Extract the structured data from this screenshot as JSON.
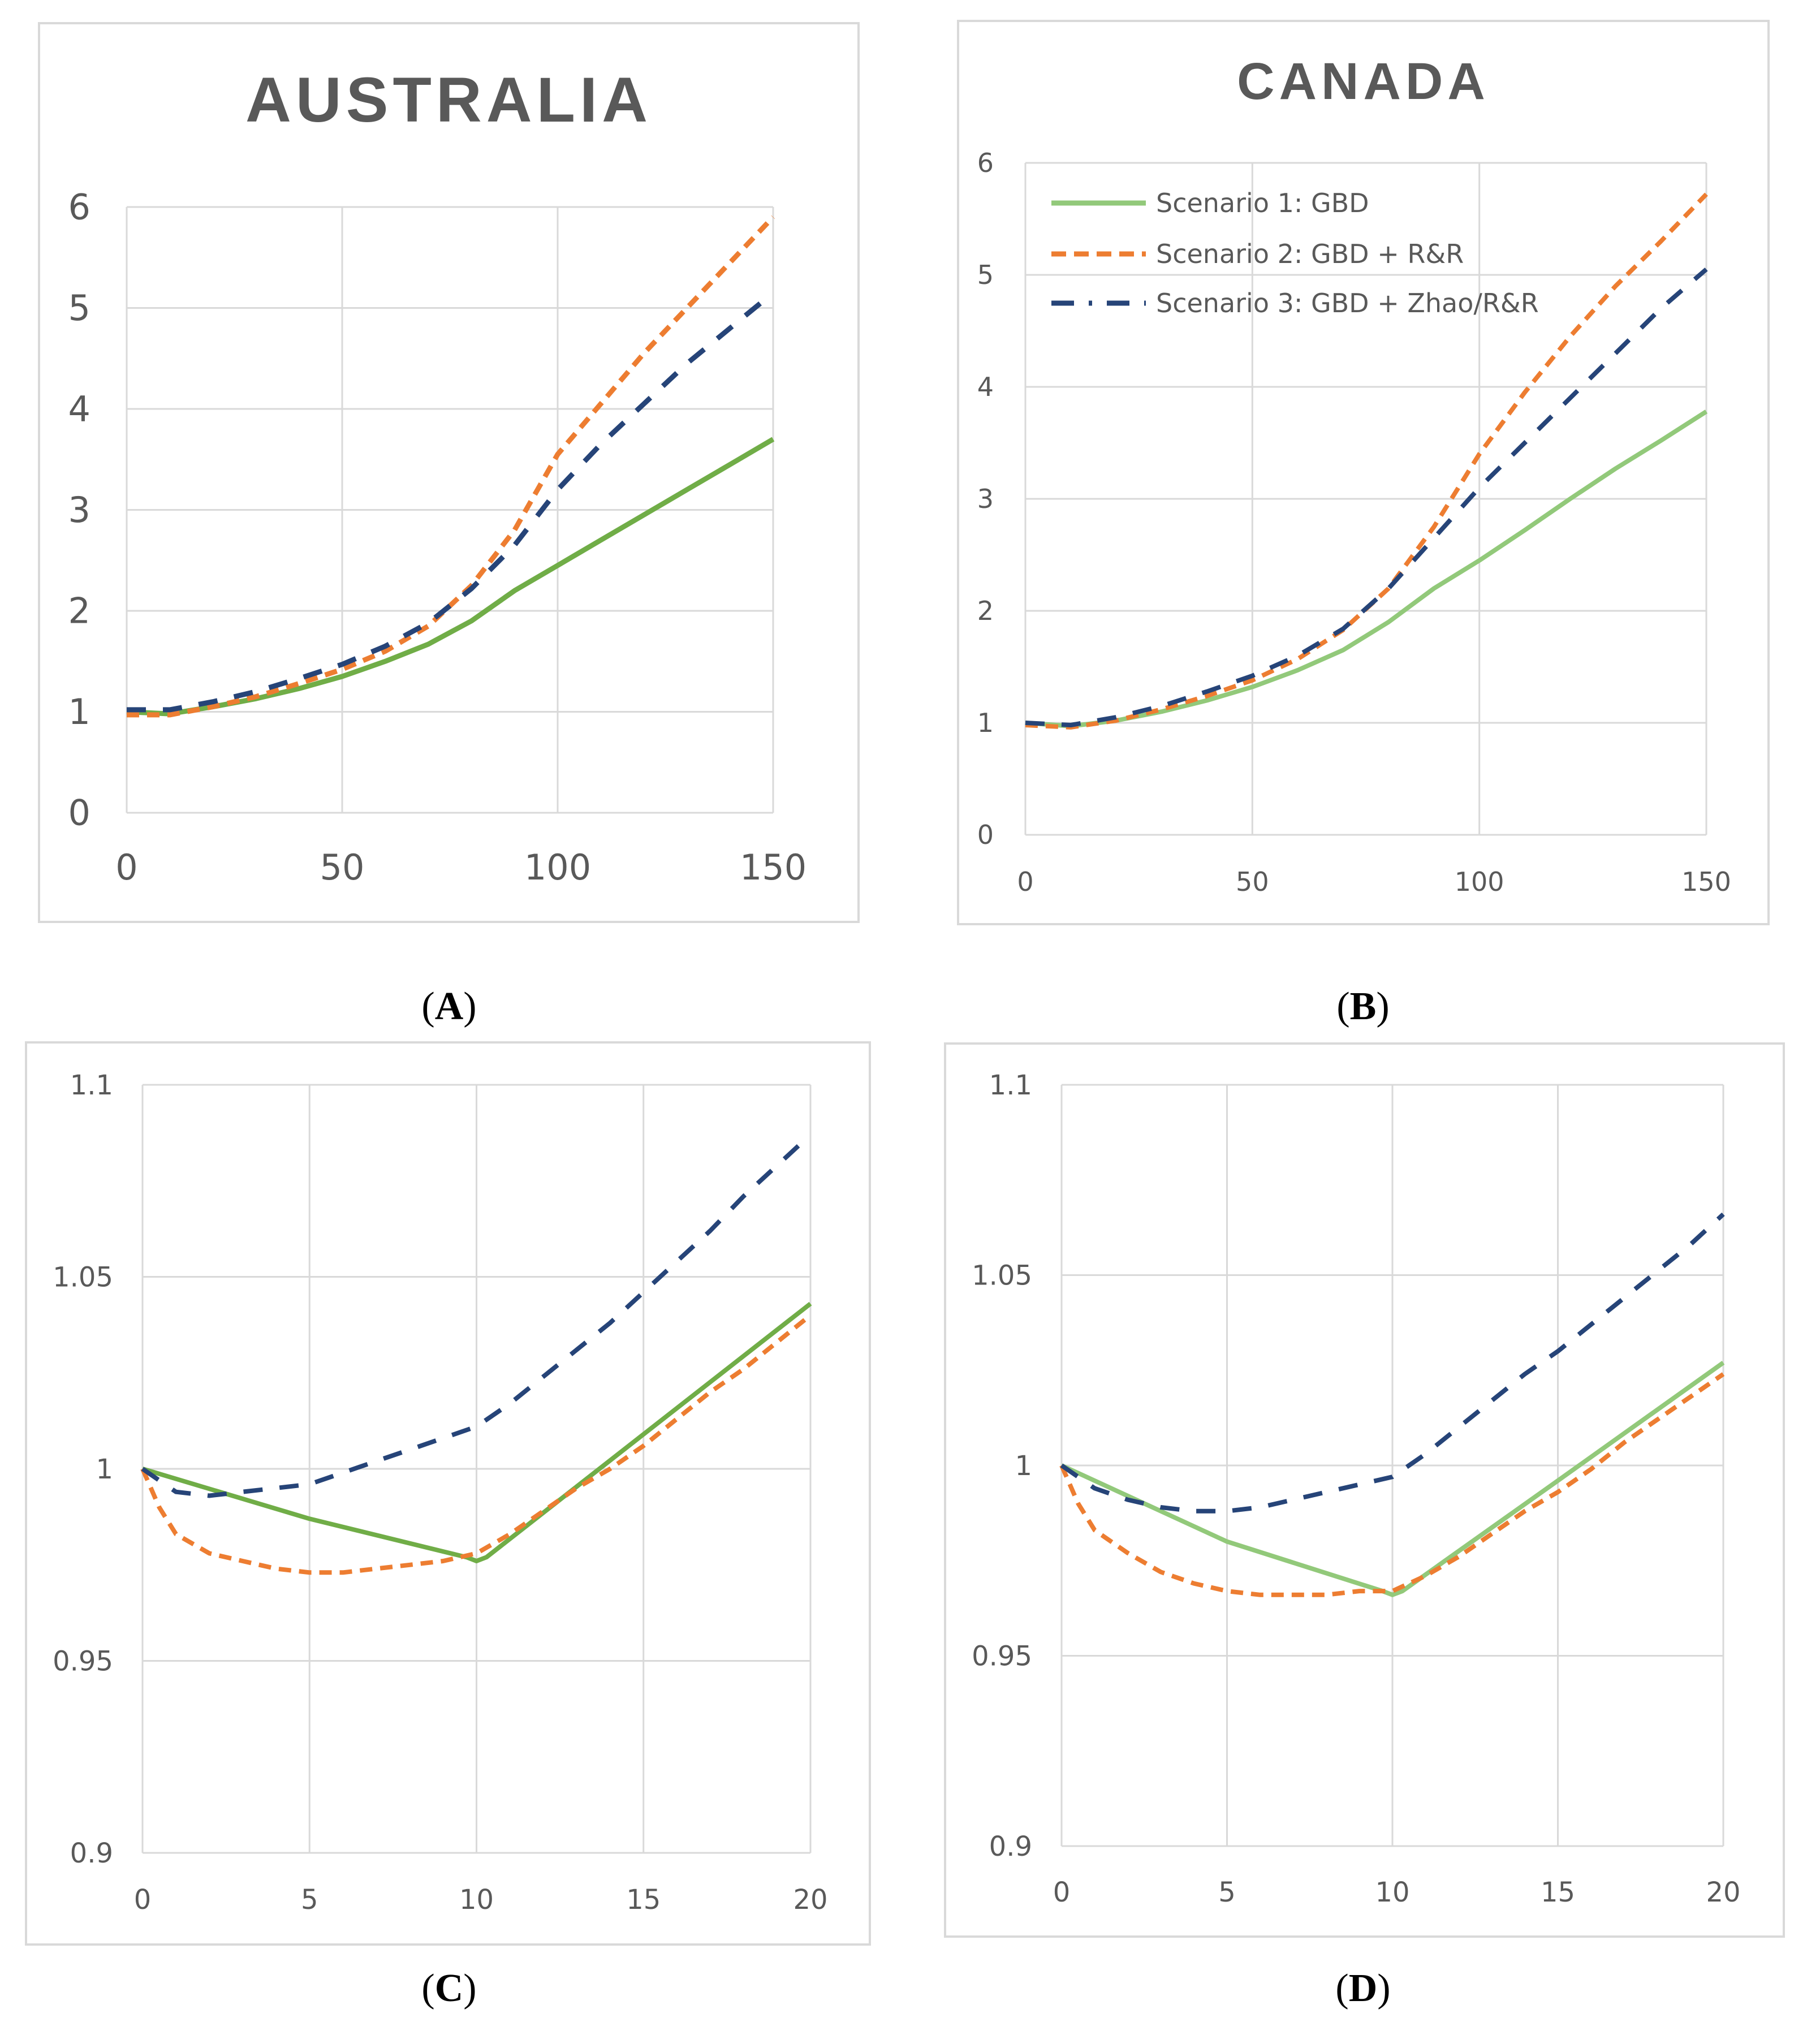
{
  "legend": [
    "Scenario 1: GBD",
    "Scenario 2: GBD + R&R",
    "Scenario 3: GBD + Zhao/R&R"
  ],
  "colors": {
    "s1_dark": "#70ad47",
    "s1_light": "#92c97a",
    "s2": "#ed7d31",
    "s3": "#264478",
    "grid": "#d9d9d9",
    "tick": "#595959",
    "title": "#595959"
  },
  "chart_data": [
    {
      "panel": "A",
      "type": "line",
      "title": "AUSTRALIA",
      "xlim": [
        0,
        150
      ],
      "ylim": [
        0,
        6
      ],
      "xticks": [
        "0",
        "50",
        "100",
        "150"
      ],
      "xtick_values": [
        0,
        50,
        100,
        150
      ],
      "yticks": [
        "0",
        "1",
        "2",
        "3",
        "4",
        "5",
        "6"
      ],
      "ytick_values": [
        0,
        1,
        2,
        3,
        4,
        5,
        6
      ],
      "grid": true,
      "legend": "none",
      "series": [
        {
          "name": "Scenario 1: GBD",
          "x": [
            0,
            10,
            20,
            30,
            40,
            50,
            60,
            70,
            80,
            90,
            100,
            110,
            120,
            130,
            140,
            150
          ],
          "y": [
            1,
            0.98,
            1.05,
            1.13,
            1.23,
            1.35,
            1.5,
            1.67,
            1.9,
            2.2,
            2.45,
            2.7,
            2.95,
            3.2,
            3.45,
            3.7
          ]
        },
        {
          "name": "Scenario 2: GBD + R&R",
          "x": [
            0,
            10,
            20,
            30,
            40,
            50,
            60,
            70,
            80,
            90,
            100,
            110,
            120,
            130,
            140,
            150
          ],
          "y": [
            0.97,
            0.97,
            1.05,
            1.15,
            1.28,
            1.42,
            1.6,
            1.85,
            2.25,
            2.8,
            3.55,
            4.05,
            4.55,
            5.0,
            5.45,
            5.9
          ]
        },
        {
          "name": "Scenario 3: GBD + Zhao/R&R",
          "x": [
            0,
            10,
            20,
            30,
            40,
            50,
            60,
            70,
            80,
            90,
            100,
            110,
            120,
            130,
            140,
            150
          ],
          "y": [
            1.02,
            1.02,
            1.1,
            1.2,
            1.33,
            1.47,
            1.65,
            1.88,
            2.22,
            2.65,
            3.2,
            3.65,
            4.05,
            4.45,
            4.8,
            5.15
          ]
        }
      ]
    },
    {
      "panel": "B",
      "type": "line",
      "title": "CANADA",
      "xlim": [
        0,
        150
      ],
      "ylim": [
        0,
        6
      ],
      "xticks": [
        "0",
        "50",
        "100",
        "150"
      ],
      "xtick_values": [
        0,
        50,
        100,
        150
      ],
      "yticks": [
        "0",
        "1",
        "2",
        "3",
        "4",
        "5",
        "6"
      ],
      "ytick_values": [
        0,
        1,
        2,
        3,
        4,
        5,
        6
      ],
      "grid": true,
      "legend": "top-left",
      "series": [
        {
          "name": "Scenario 1: GBD",
          "x": [
            0,
            10,
            20,
            30,
            40,
            50,
            60,
            70,
            80,
            90,
            100,
            110,
            120,
            130,
            140,
            150
          ],
          "y": [
            1,
            0.97,
            1.02,
            1.1,
            1.2,
            1.32,
            1.47,
            1.65,
            1.9,
            2.2,
            2.45,
            2.72,
            3.0,
            3.27,
            3.52,
            3.78
          ]
        },
        {
          "name": "Scenario 2: GBD + R&R",
          "x": [
            0,
            10,
            20,
            30,
            40,
            50,
            60,
            70,
            80,
            90,
            100,
            110,
            120,
            130,
            140,
            150
          ],
          "y": [
            0.98,
            0.96,
            1.02,
            1.12,
            1.24,
            1.38,
            1.57,
            1.83,
            2.2,
            2.75,
            3.4,
            3.95,
            4.45,
            4.9,
            5.3,
            5.72
          ]
        },
        {
          "name": "Scenario 3: GBD + Zhao/R&R",
          "x": [
            0,
            10,
            20,
            30,
            40,
            50,
            60,
            70,
            80,
            90,
            100,
            110,
            120,
            130,
            140,
            150
          ],
          "y": [
            1,
            0.98,
            1.05,
            1.15,
            1.28,
            1.42,
            1.6,
            1.84,
            2.2,
            2.65,
            3.1,
            3.5,
            3.9,
            4.3,
            4.7,
            5.05
          ]
        }
      ]
    },
    {
      "panel": "C",
      "type": "line",
      "title": "",
      "xlim": [
        0,
        20
      ],
      "ylim": [
        0.9,
        1.1
      ],
      "xticks": [
        "0",
        "5",
        "10",
        "15",
        "20"
      ],
      "xtick_values": [
        0,
        5,
        10,
        15,
        20
      ],
      "yticks": [
        "0.9",
        "0.95",
        "1",
        "1.05",
        "1.1"
      ],
      "ytick_values": [
        0.9,
        0.95,
        1,
        1.05,
        1.1
      ],
      "grid": true,
      "legend": "none",
      "series": [
        {
          "name": "Scenario 1: GBD",
          "x": [
            0,
            5,
            9.7,
            10,
            10.3,
            15,
            20
          ],
          "y": [
            1,
            0.987,
            0.977,
            0.976,
            0.977,
            1.009,
            1.043
          ]
        },
        {
          "name": "Scenario 2: GBD + R&R",
          "x": [
            0,
            0.5,
            1,
            2,
            3,
            4,
            5,
            6,
            7,
            8,
            9,
            10,
            11,
            12,
            13,
            14,
            15,
            16,
            17,
            18,
            19,
            20
          ],
          "y": [
            1,
            0.99,
            0.983,
            0.978,
            0.976,
            0.974,
            0.973,
            0.973,
            0.974,
            0.975,
            0.976,
            0.978,
            0.983,
            0.989,
            0.995,
            1.0,
            1.006,
            1.013,
            1.02,
            1.026,
            1.033,
            1.04
          ]
        },
        {
          "name": "Scenario 3: GBD + Zhao/R&R",
          "x": [
            0,
            1,
            2,
            3,
            4,
            5,
            6,
            7,
            8,
            9,
            10,
            11,
            12,
            13,
            14,
            15,
            16,
            17,
            18,
            19,
            20
          ],
          "y": [
            1,
            0.994,
            0.993,
            0.994,
            0.995,
            0.996,
            0.999,
            1.002,
            1.005,
            1.008,
            1.011,
            1.017,
            1.024,
            1.031,
            1.038,
            1.046,
            1.054,
            1.062,
            1.071,
            1.079,
            1.087
          ]
        }
      ]
    },
    {
      "panel": "D",
      "type": "line",
      "title": "",
      "xlim": [
        0,
        20
      ],
      "ylim": [
        0.9,
        1.1
      ],
      "xticks": [
        "0",
        "5",
        "10",
        "15",
        "20"
      ],
      "xtick_values": [
        0,
        5,
        10,
        15,
        20
      ],
      "yticks": [
        "0.9",
        "0.95",
        "1",
        "1.05",
        "1.1"
      ],
      "ytick_values": [
        0.9,
        0.95,
        1,
        1.05,
        1.1
      ],
      "grid": true,
      "legend": "none",
      "series": [
        {
          "name": "Scenario 1: GBD",
          "x": [
            0,
            5,
            9.7,
            10,
            10.3,
            15,
            20
          ],
          "y": [
            1,
            0.98,
            0.967,
            0.966,
            0.967,
            0.996,
            1.027
          ]
        },
        {
          "name": "Scenario 2: GBD + R&R",
          "x": [
            0,
            0.5,
            1,
            2,
            3,
            4,
            5,
            6,
            7,
            8,
            9,
            10,
            11,
            12,
            13,
            14,
            15,
            16,
            17,
            18,
            19,
            20
          ],
          "y": [
            1,
            0.99,
            0.983,
            0.977,
            0.972,
            0.969,
            0.967,
            0.966,
            0.966,
            0.966,
            0.967,
            0.967,
            0.971,
            0.976,
            0.982,
            0.988,
            0.993,
            0.999,
            1.006,
            1.012,
            1.018,
            1.024
          ]
        },
        {
          "name": "Scenario 3: GBD + Zhao/R&R",
          "x": [
            0,
            1,
            2,
            3,
            4,
            5,
            6,
            7,
            8,
            9,
            10,
            11,
            12,
            13,
            14,
            15,
            16,
            17,
            18,
            19,
            20
          ],
          "y": [
            1,
            0.994,
            0.991,
            0.989,
            0.988,
            0.988,
            0.989,
            0.991,
            0.993,
            0.995,
            0.997,
            1.003,
            1.01,
            1.017,
            1.024,
            1.03,
            1.037,
            1.044,
            1.051,
            1.058,
            1.066
          ]
        }
      ]
    }
  ]
}
